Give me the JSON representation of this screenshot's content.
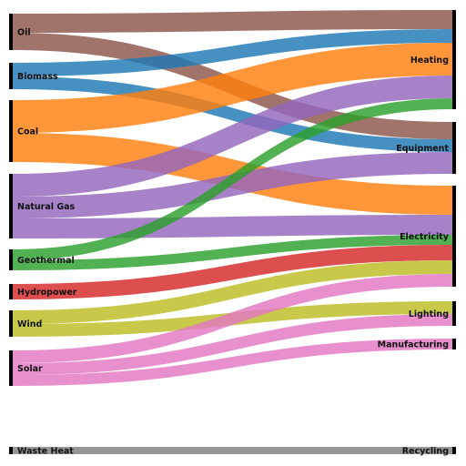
{
  "diagram": {
    "type": "sankey",
    "sources": [
      {
        "id": "oil",
        "label": "Oil"
      },
      {
        "id": "biomass",
        "label": "Biomass"
      },
      {
        "id": "coal",
        "label": "Coal"
      },
      {
        "id": "natural-gas",
        "label": "Natural Gas"
      },
      {
        "id": "geothermal",
        "label": "Geothermal"
      },
      {
        "id": "hydropower",
        "label": "Hydropower"
      },
      {
        "id": "wind",
        "label": "Wind"
      },
      {
        "id": "solar",
        "label": "Solar"
      },
      {
        "id": "waste-heat",
        "label": "Waste Heat"
      }
    ],
    "targets": [
      {
        "id": "heating",
        "label": "Heating"
      },
      {
        "id": "equipment",
        "label": "Equipment"
      },
      {
        "id": "electricity",
        "label": "Electricity"
      },
      {
        "id": "lighting",
        "label": "Lighting"
      },
      {
        "id": "manufacturing",
        "label": "Manufacturing"
      },
      {
        "id": "recycling",
        "label": "Recycling"
      }
    ],
    "links": [
      {
        "source": "oil",
        "target": "heating",
        "value": 21,
        "color": "#8c564b"
      },
      {
        "source": "oil",
        "target": "equipment",
        "value": 19,
        "color": "#8c564b"
      },
      {
        "source": "biomass",
        "target": "heating",
        "value": 15,
        "color": "#1f77b4"
      },
      {
        "source": "biomass",
        "target": "equipment",
        "value": 14,
        "color": "#1f77b4"
      },
      {
        "source": "coal",
        "target": "heating",
        "value": 36,
        "color": "#ff7f0e"
      },
      {
        "source": "coal",
        "target": "electricity",
        "value": 32,
        "color": "#ff7f0e"
      },
      {
        "source": "natural-gas",
        "target": "heating",
        "value": 25,
        "color": "#9467bd"
      },
      {
        "source": "natural-gas",
        "target": "equipment",
        "value": 24,
        "color": "#9467bd"
      },
      {
        "source": "natural-gas",
        "target": "electricity",
        "value": 22,
        "color": "#9467bd"
      },
      {
        "source": "geothermal",
        "target": "heating",
        "value": 12,
        "color": "#2ca02c"
      },
      {
        "source": "geothermal",
        "target": "electricity",
        "value": 11,
        "color": "#2ca02c"
      },
      {
        "source": "hydropower",
        "target": "electricity",
        "value": 17,
        "color": "#d62728"
      },
      {
        "source": "wind",
        "target": "electricity",
        "value": 15,
        "color": "#bcbd22"
      },
      {
        "source": "wind",
        "target": "lighting",
        "value": 14,
        "color": "#bcbd22"
      },
      {
        "source": "solar",
        "target": "electricity",
        "value": 14,
        "color": "#e377c2"
      },
      {
        "source": "solar",
        "target": "lighting",
        "value": 13,
        "color": "#e377c2"
      },
      {
        "source": "solar",
        "target": "manufacturing",
        "value": 12,
        "color": "#e377c2"
      },
      {
        "source": "waste-heat",
        "target": "recycling",
        "value": 8,
        "color": "#7f7f7f"
      }
    ],
    "node_color": "#000000"
  }
}
